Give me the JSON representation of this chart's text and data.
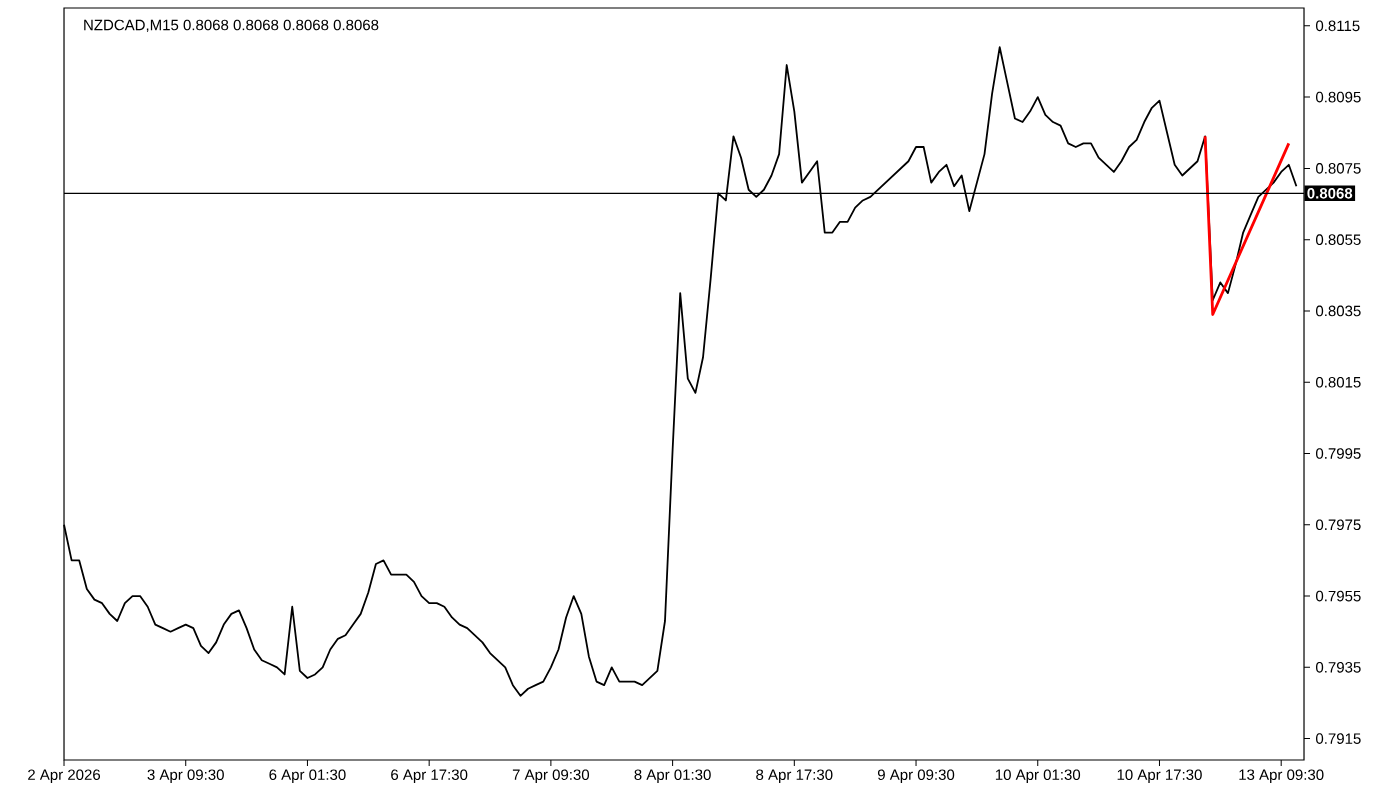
{
  "chart_data": {
    "type": "line",
    "title": "NZDCAD,M15  0.8068 0.8068 0.8068 0.8068",
    "categories": [
      "2 Apr 2026",
      null,
      null,
      null,
      null,
      null,
      null,
      null,
      null,
      null,
      null,
      null,
      null,
      null,
      null,
      null,
      "3 Apr 09:30",
      null,
      null,
      null,
      null,
      null,
      null,
      null,
      null,
      null,
      null,
      null,
      null,
      null,
      null,
      null,
      "6 Apr 01:30",
      null,
      null,
      null,
      null,
      null,
      null,
      null,
      null,
      null,
      null,
      null,
      null,
      null,
      null,
      null,
      "6 Apr 17:30",
      null,
      null,
      null,
      null,
      null,
      null,
      null,
      null,
      null,
      null,
      null,
      null,
      null,
      null,
      null,
      "7 Apr 09:30",
      null,
      null,
      null,
      null,
      null,
      null,
      null,
      null,
      null,
      null,
      null,
      null,
      null,
      null,
      null,
      "8 Apr 01:30",
      null,
      null,
      null,
      null,
      null,
      null,
      null,
      null,
      null,
      null,
      null,
      null,
      null,
      null,
      null,
      "8 Apr 17:30",
      null,
      null,
      null,
      null,
      null,
      null,
      null,
      null,
      null,
      null,
      null,
      null,
      null,
      null,
      null,
      "9 Apr 09:30",
      null,
      null,
      null,
      null,
      null,
      null,
      null,
      null,
      null,
      null,
      null,
      null,
      null,
      null,
      null,
      "10 Apr 01:30",
      null,
      null,
      null,
      null,
      null,
      null,
      null,
      null,
      null,
      null,
      null,
      null,
      null,
      null,
      null,
      "10 Apr 17:30",
      null,
      null,
      null,
      null,
      null,
      null,
      null,
      null,
      null,
      null,
      null,
      null,
      null,
      null,
      null,
      "13 Apr 09:30",
      null,
      null,
      null
    ],
    "ylim": [
      0.7909,
      0.812
    ],
    "yticks": [
      0.7915,
      0.7935,
      0.7955,
      0.7975,
      0.7995,
      0.8015,
      0.8035,
      0.8055,
      0.8075,
      0.8095,
      0.8115
    ],
    "series": [
      {
        "color": "#000000",
        "values": [
          0.7975,
          0.7965,
          0.7965,
          0.7957,
          0.7954,
          0.7953,
          0.795,
          0.7948,
          0.7953,
          0.7955,
          0.7955,
          0.7952,
          0.7947,
          0.7946,
          0.7945,
          0.7946,
          0.7947,
          0.7946,
          0.7941,
          0.7939,
          0.7942,
          0.7947,
          0.795,
          0.7951,
          0.7946,
          0.794,
          0.7937,
          0.7936,
          0.7935,
          0.7933,
          0.7952,
          0.7934,
          0.7932,
          0.7933,
          0.7935,
          0.794,
          0.7943,
          0.7944,
          0.7947,
          0.795,
          0.7956,
          0.7964,
          0.7965,
          0.7961,
          0.7961,
          0.7961,
          0.7959,
          0.7955,
          0.7953,
          0.7953,
          0.7952,
          0.7949,
          0.7947,
          0.7946,
          0.7944,
          0.7942,
          0.7939,
          0.7937,
          0.7935,
          0.793,
          0.7927,
          0.7929,
          0.793,
          0.7931,
          0.7935,
          0.794,
          0.7949,
          0.7955,
          0.795,
          0.7938,
          0.7931,
          0.793,
          0.7935,
          0.7931,
          0.7931,
          0.7931,
          0.793,
          0.7932,
          0.7934,
          0.7948,
          0.7996,
          0.804,
          0.8016,
          0.8012,
          0.8022,
          0.8044,
          0.8068,
          0.8066,
          0.8084,
          0.8078,
          0.8069,
          0.8067,
          0.8069,
          0.8073,
          0.8079,
          0.8104,
          0.8091,
          0.8071,
          0.8074,
          0.8077,
          0.8057,
          0.8057,
          0.806,
          0.806,
          0.8064,
          0.8066,
          0.8067,
          0.8069,
          0.8071,
          0.8073,
          0.8075,
          0.8077,
          0.8081,
          0.8081,
          0.8071,
          0.8074,
          0.8076,
          0.807,
          0.8073,
          0.8063,
          0.8071,
          0.8079,
          0.8096,
          0.8109,
          0.8099,
          0.8089,
          0.8088,
          0.8091,
          0.8095,
          0.809,
          0.8088,
          0.8087,
          0.8082,
          0.8081,
          0.8082,
          0.8082,
          0.8078,
          0.8076,
          0.8074,
          0.8077,
          0.8081,
          0.8083,
          0.8088,
          0.8092,
          0.8094,
          0.8085,
          0.8076,
          0.8073,
          0.8075,
          0.8077,
          0.8084,
          0.8038,
          0.8043,
          0.804,
          0.8048,
          0.8057,
          0.8062,
          0.8067,
          0.8069,
          0.8071,
          0.8074,
          0.8076,
          0.807,
          null
        ]
      },
      {
        "color": "#ff0000",
        "values": [
          null,
          null,
          null,
          null,
          null,
          null,
          null,
          null,
          null,
          null,
          null,
          null,
          null,
          null,
          null,
          null,
          null,
          null,
          null,
          null,
          null,
          null,
          null,
          null,
          null,
          null,
          null,
          null,
          null,
          null,
          null,
          null,
          null,
          null,
          null,
          null,
          null,
          null,
          null,
          null,
          null,
          null,
          null,
          null,
          null,
          null,
          null,
          null,
          null,
          null,
          null,
          null,
          null,
          null,
          null,
          null,
          null,
          null,
          null,
          null,
          null,
          null,
          null,
          null,
          null,
          null,
          null,
          null,
          null,
          null,
          null,
          null,
          null,
          null,
          null,
          null,
          null,
          null,
          null,
          null,
          null,
          null,
          null,
          null,
          null,
          null,
          null,
          null,
          null,
          null,
          null,
          null,
          null,
          null,
          null,
          null,
          null,
          null,
          null,
          null,
          null,
          null,
          null,
          null,
          null,
          null,
          null,
          null,
          null,
          null,
          null,
          null,
          null,
          null,
          null,
          null,
          null,
          null,
          null,
          null,
          null,
          null,
          null,
          null,
          null,
          null,
          null,
          null,
          null,
          null,
          null,
          null,
          null,
          null,
          null,
          null,
          null,
          null,
          null,
          null,
          null,
          null,
          null,
          null,
          null,
          null,
          null,
          null,
          null,
          null,
          0.8084,
          0.8034,
          null,
          null,
          null,
          null,
          null,
          null,
          null,
          null,
          null,
          0.8082,
          null,
          null
        ]
      }
    ],
    "ref_lines": [
      {
        "axis": "y",
        "value": 0.8068,
        "label": "0.8068",
        "color": "#000000"
      }
    ]
  }
}
